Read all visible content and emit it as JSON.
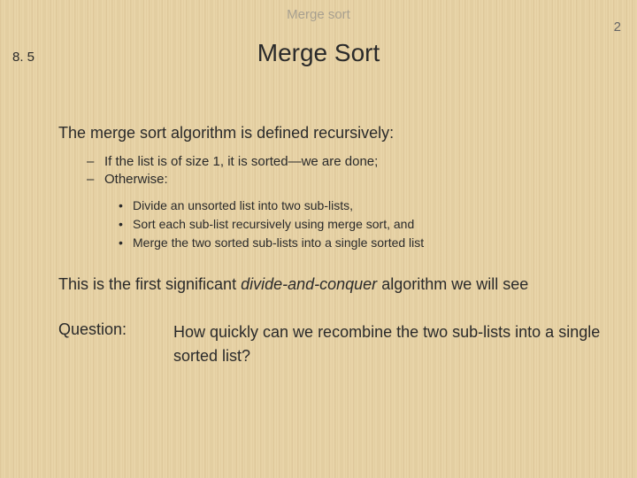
{
  "header": {
    "label": "Merge sort",
    "page_number": "2",
    "section_number": "8. 5",
    "title": "Merge Sort"
  },
  "content": {
    "intro": "The merge sort algorithm is defined recursively:",
    "dash_items": [
      "If the list is of size 1, it is sorted—we are done;",
      "Otherwise:"
    ],
    "bullet_items": [
      "Divide an unsorted list into two sub-lists,",
      "Sort each sub-list recursively using merge sort, and",
      "Merge the two sorted sub-lists into a single sorted list"
    ],
    "statement_pre": "This is the first significant ",
    "statement_em": "divide-and-conquer",
    "statement_post": " algorithm we will see",
    "question_label": "Question:",
    "question_text": "How quickly can we recombine the two sub-lists into a single sorted list?"
  },
  "colors": {
    "background": "#e8d4a8",
    "header_text": "#a8a090",
    "body_text": "#2a2a2a"
  }
}
